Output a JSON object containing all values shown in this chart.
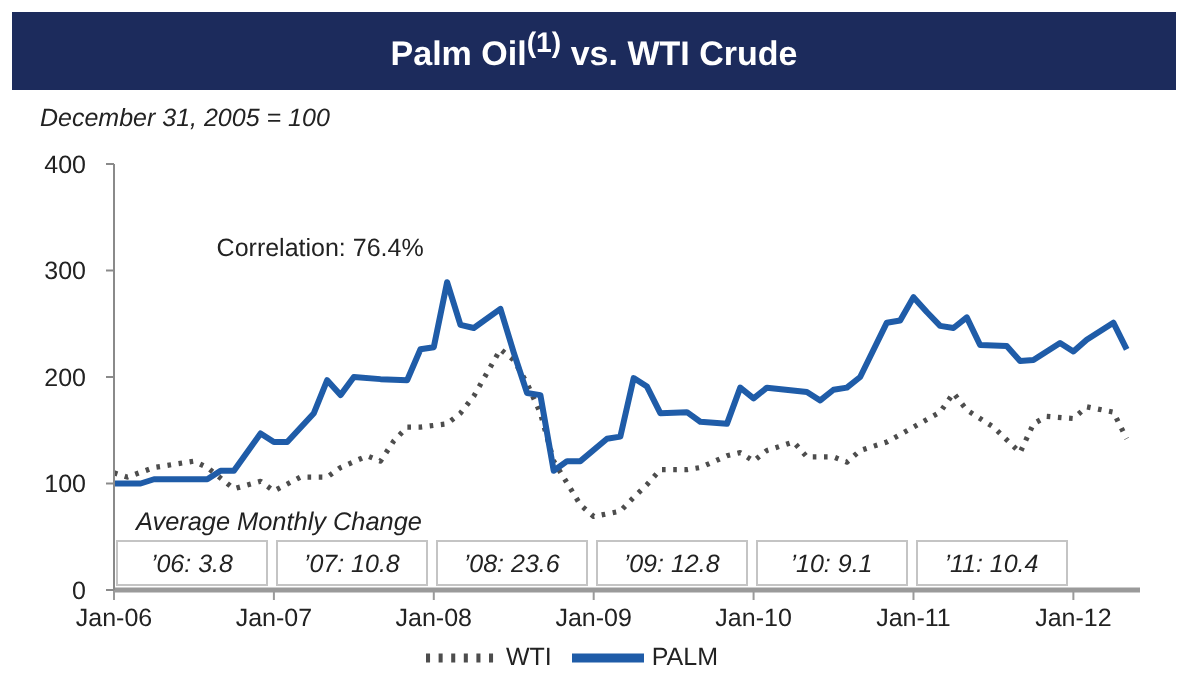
{
  "chart_data": {
    "type": "line",
    "title": "Palm Oil$^{(1)}$ vs. WTI Crude",
    "subtitle": "December 31, 2005 = 100",
    "annotations": [
      "Correlation: 76.4%",
      "Average Monthly Change",
      "’06: 3.8",
      "’07: 10.8",
      "’08: 23.6",
      "’09: 12.8",
      "’10: 9.1",
      "’11: 10.4"
    ],
    "xlim": [
      "2006-01",
      "2012-06"
    ],
    "xticks": [
      {
        "value": "2006-01",
        "label": "Jan-06"
      },
      {
        "value": "2007-01",
        "label": "Jan-07"
      },
      {
        "value": "2008-01",
        "label": "Jan-08"
      },
      {
        "value": "2009-01",
        "label": "Jan-09"
      },
      {
        "value": "2010-01",
        "label": "Jan-10"
      },
      {
        "value": "2011-01",
        "label": "Jan-11"
      },
      {
        "value": "2012-01",
        "label": "Jan-12"
      }
    ],
    "ylim": [
      0,
      400
    ],
    "yticks": [
      0,
      100,
      200,
      300,
      400
    ],
    "legend": "bottom",
    "series": [
      {
        "name": "WTI",
        "color": "#4d4d4d",
        "line_style": "dotted",
        "x": [
          "2006-01",
          "2006-02",
          "2006-04",
          "2006-07",
          "2006-08",
          "2006-10",
          "2006-12",
          "2007-01",
          "2007-03",
          "2007-05",
          "2007-06",
          "2007-08",
          "2007-09",
          "2007-10",
          "2007-11",
          "2007-12",
          "2008-02",
          "2008-03",
          "2008-04",
          "2008-06",
          "2008-07",
          "2008-08",
          "2008-09",
          "2008-10",
          "2008-12",
          "2009-01",
          "2009-03",
          "2009-04",
          "2009-05",
          "2009-06",
          "2009-08",
          "2009-09",
          "2009-11",
          "2009-12",
          "2010-01",
          "2010-02",
          "2010-04",
          "2010-05",
          "2010-07",
          "2010-08",
          "2010-09",
          "2010-11",
          "2011-01",
          "2011-03",
          "2011-04",
          "2011-05",
          "2011-07",
          "2011-09",
          "2011-10",
          "2011-11",
          "2012-01",
          "2012-02",
          "2012-04",
          "2012-05"
        ],
        "values": [
          110,
          106,
          115,
          121,
          115,
          95,
          102,
          93,
          106,
          106,
          115,
          126,
          121,
          140,
          153,
          153,
          156,
          166,
          182,
          226,
          216,
          194,
          166,
          121,
          80,
          69,
          74,
          87,
          99,
          113,
          113,
          115,
          126,
          129,
          121,
          131,
          139,
          125,
          125,
          120,
          131,
          139,
          153,
          167,
          185,
          169,
          153,
          129,
          156,
          163,
          161,
          172,
          167,
          142
        ]
      },
      {
        "name": "PALM",
        "color": "#1f5ca8",
        "line_style": "solid",
        "x": [
          "2006-01",
          "2006-03",
          "2006-04",
          "2006-08",
          "2006-09",
          "2006-10",
          "2006-12",
          "2007-01",
          "2007-02",
          "2007-04",
          "2007-05",
          "2007-06",
          "2007-07",
          "2007-09",
          "2007-11",
          "2007-12",
          "2008-01",
          "2008-02",
          "2008-03",
          "2008-04",
          "2008-06",
          "2008-07",
          "2008-08",
          "2008-09",
          "2008-10",
          "2008-11",
          "2008-12",
          "2009-02",
          "2009-03",
          "2009-04",
          "2009-05",
          "2009-06",
          "2009-08",
          "2009-09",
          "2009-11",
          "2009-12",
          "2010-01",
          "2010-02",
          "2010-05",
          "2010-06",
          "2010-07",
          "2010-08",
          "2010-09",
          "2010-11",
          "2010-12",
          "2011-01",
          "2011-02",
          "2011-03",
          "2011-04",
          "2011-05",
          "2011-06",
          "2011-08",
          "2011-09",
          "2011-10",
          "2011-12",
          "2012-01",
          "2012-02",
          "2012-04",
          "2012-05"
        ],
        "values": [
          100,
          100,
          104,
          104,
          112,
          112,
          147,
          139,
          139,
          166,
          197,
          183,
          200,
          198,
          197,
          226,
          228,
          289,
          249,
          246,
          264,
          223,
          185,
          183,
          112,
          121,
          121,
          142,
          144,
          199,
          191,
          166,
          167,
          158,
          156,
          190,
          180,
          190,
          186,
          178,
          188,
          190,
          200,
          251,
          253,
          275,
          261,
          248,
          246,
          256,
          230,
          229,
          215,
          216,
          232,
          224,
          235,
          251,
          226
        ]
      }
    ]
  }
}
